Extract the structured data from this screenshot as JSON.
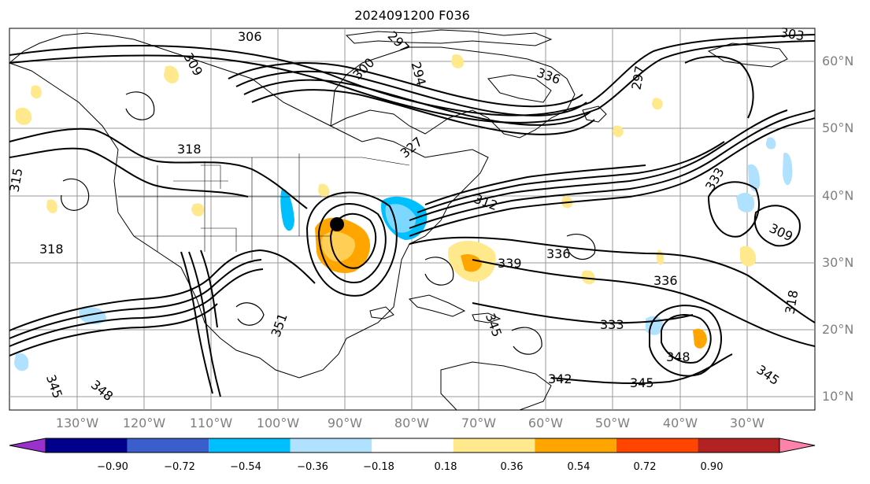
{
  "title": "2024091200 F036",
  "lat_labels": [
    "60°N",
    "50°N",
    "40°N",
    "30°N",
    "20°N",
    "10°N"
  ],
  "lon_labels": [
    "130°W",
    "120°W",
    "110°W",
    "100°W",
    "90°W",
    "80°W",
    "70°W",
    "60°W",
    "50°W",
    "40°W",
    "30°W"
  ],
  "contour_labels": [
    "306",
    "309",
    "297",
    "294",
    "300",
    "297",
    "303",
    "318",
    "315",
    "318",
    "312",
    "327",
    "336",
    "339",
    "336",
    "333",
    "309",
    "336",
    "333",
    "345",
    "348",
    "345",
    "345",
    "348",
    "342",
    "345",
    "351",
    "318"
  ],
  "colorbar": {
    "ticks": [
      "−0.90",
      "−0.72",
      "−0.54",
      "−0.36",
      "−0.18",
      "0.18",
      "0.36",
      "0.54",
      "0.72",
      "0.90"
    ],
    "colors": [
      "#9932cc",
      "#00008b",
      "#3a5fcd",
      "#00bfff",
      "#b0e2ff",
      "#ffffff",
      "#ffe98c",
      "#ffa500",
      "#ff4500",
      "#b22222",
      "#ff82ab"
    ]
  },
  "storm_marker": "black-dot"
}
